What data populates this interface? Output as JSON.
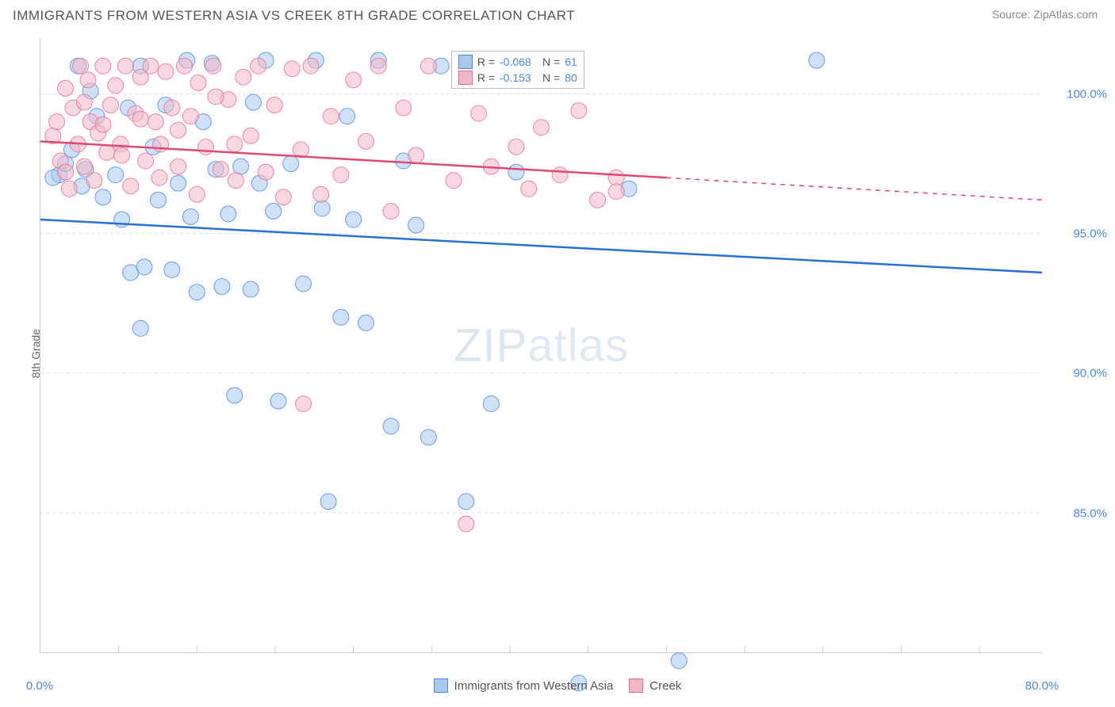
{
  "title": "IMMIGRANTS FROM WESTERN ASIA VS CREEK 8TH GRADE CORRELATION CHART",
  "source": "Source: ZipAtlas.com",
  "watermark_bold": "ZIP",
  "watermark_thin": "atlas",
  "chart": {
    "type": "scatter",
    "xlim": [
      0,
      80
    ],
    "ylim": [
      80,
      102
    ],
    "x_ticks": [
      0,
      80
    ],
    "x_tick_labels": [
      "0.0%",
      "80.0%"
    ],
    "x_minor_ticks": [
      6.25,
      12.5,
      18.75,
      25,
      31.25,
      37.5,
      43.75,
      50,
      56.25,
      62.5,
      68.75,
      75
    ],
    "y_ticks": [
      85,
      90,
      95,
      100
    ],
    "y_tick_labels": [
      "85.0%",
      "90.0%",
      "95.0%",
      "100.0%"
    ],
    "grid_color": "#dddddd",
    "grid_dash": "4,4",
    "background_color": "#ffffff",
    "tick_label_color": "#4a86e8",
    "y_axis_label": "8th Grade",
    "axis_label_color": "#666666",
    "marker_radius": 10,
    "marker_opacity": 0.55,
    "series": [
      {
        "name": "Immigrants from Western Asia",
        "fill_color": "#a8c8ee",
        "stroke_color": "#4a86e8",
        "trend_color": "#2a70d8",
        "R": "-0.068",
        "N": "61",
        "trend_start": [
          0,
          95.5
        ],
        "trend_end": [
          80,
          93.6
        ],
        "dashed_start": null,
        "dashed_end": null,
        "points": [
          [
            1.5,
            97.1
          ],
          [
            2.0,
            97.5
          ],
          [
            1.0,
            97.0
          ],
          [
            2.5,
            98.0
          ],
          [
            3.0,
            101.0
          ],
          [
            3.3,
            96.7
          ],
          [
            3.6,
            97.3
          ],
          [
            4.0,
            100.1
          ],
          [
            4.5,
            99.2
          ],
          [
            5.0,
            96.3
          ],
          [
            6.0,
            97.1
          ],
          [
            6.5,
            95.5
          ],
          [
            7.0,
            99.5
          ],
          [
            7.2,
            93.6
          ],
          [
            8.0,
            101.0
          ],
          [
            8.3,
            93.8
          ],
          [
            9.0,
            98.1
          ],
          [
            9.4,
            96.2
          ],
          [
            10.0,
            99.6
          ],
          [
            10.5,
            93.7
          ],
          [
            11.0,
            96.8
          ],
          [
            11.7,
            101.2
          ],
          [
            12.0,
            95.6
          ],
          [
            12.5,
            92.9
          ],
          [
            13.0,
            99.0
          ],
          [
            13.7,
            101.1
          ],
          [
            14.0,
            97.3
          ],
          [
            14.5,
            93.1
          ],
          [
            15.0,
            95.7
          ],
          [
            15.5,
            89.2
          ],
          [
            16.0,
            97.4
          ],
          [
            16.8,
            93.0
          ],
          [
            17.0,
            99.7
          ],
          [
            17.5,
            96.8
          ],
          [
            18.0,
            101.2
          ],
          [
            18.6,
            95.8
          ],
          [
            19.0,
            89.0
          ],
          [
            20.0,
            97.5
          ],
          [
            21.0,
            93.2
          ],
          [
            22.0,
            101.2
          ],
          [
            22.5,
            95.9
          ],
          [
            23.0,
            85.4
          ],
          [
            24.0,
            92.0
          ],
          [
            24.5,
            99.2
          ],
          [
            25.0,
            95.5
          ],
          [
            26.0,
            91.8
          ],
          [
            27.0,
            101.2
          ],
          [
            28.0,
            88.1
          ],
          [
            29.0,
            97.6
          ],
          [
            30.0,
            95.3
          ],
          [
            31.0,
            87.7
          ],
          [
            32.0,
            101.0
          ],
          [
            34.0,
            85.4
          ],
          [
            36.0,
            88.9
          ],
          [
            38.0,
            97.2
          ],
          [
            40.0,
            101.0
          ],
          [
            43.0,
            78.9
          ],
          [
            47.0,
            96.6
          ],
          [
            51.0,
            79.7
          ],
          [
            62.0,
            101.2
          ],
          [
            8.0,
            91.6
          ]
        ]
      },
      {
        "name": "Creek",
        "fill_color": "#f3b8c6",
        "stroke_color": "#e86d8a",
        "trend_color": "#e04a72",
        "R": "-0.153",
        "N": "80",
        "trend_start": [
          0,
          98.3
        ],
        "trend_end": [
          50,
          97.0
        ],
        "dashed_start": [
          50,
          97.0
        ],
        "dashed_end": [
          80,
          96.2
        ],
        "points": [
          [
            1.0,
            98.5
          ],
          [
            1.3,
            99.0
          ],
          [
            1.6,
            97.6
          ],
          [
            2.0,
            100.2
          ],
          [
            2.3,
            96.6
          ],
          [
            2.6,
            99.5
          ],
          [
            3.0,
            98.2
          ],
          [
            3.2,
            101.0
          ],
          [
            3.5,
            97.4
          ],
          [
            3.8,
            100.5
          ],
          [
            4.0,
            99.0
          ],
          [
            4.3,
            96.9
          ],
          [
            4.6,
            98.6
          ],
          [
            5.0,
            101.0
          ],
          [
            5.3,
            97.9
          ],
          [
            5.6,
            99.6
          ],
          [
            6.0,
            100.3
          ],
          [
            6.4,
            98.2
          ],
          [
            6.8,
            101.0
          ],
          [
            7.2,
            96.7
          ],
          [
            7.6,
            99.3
          ],
          [
            8.0,
            100.6
          ],
          [
            8.4,
            97.6
          ],
          [
            8.8,
            101.0
          ],
          [
            9.2,
            99.0
          ],
          [
            9.6,
            98.2
          ],
          [
            10.0,
            100.8
          ],
          [
            10.5,
            99.5
          ],
          [
            11.0,
            97.4
          ],
          [
            11.5,
            101.0
          ],
          [
            12.0,
            99.2
          ],
          [
            12.6,
            100.4
          ],
          [
            13.2,
            98.1
          ],
          [
            13.8,
            101.0
          ],
          [
            14.4,
            97.3
          ],
          [
            15.0,
            99.8
          ],
          [
            15.6,
            96.9
          ],
          [
            16.2,
            100.6
          ],
          [
            16.8,
            98.5
          ],
          [
            17.4,
            101.0
          ],
          [
            18.0,
            97.2
          ],
          [
            18.7,
            99.6
          ],
          [
            19.4,
            96.3
          ],
          [
            20.1,
            100.9
          ],
          [
            20.8,
            98.0
          ],
          [
            21.6,
            101.0
          ],
          [
            22.4,
            96.4
          ],
          [
            23.2,
            99.2
          ],
          [
            24.0,
            97.1
          ],
          [
            25.0,
            100.5
          ],
          [
            26.0,
            98.3
          ],
          [
            27.0,
            101.0
          ],
          [
            28.0,
            95.8
          ],
          [
            29.0,
            99.5
          ],
          [
            30.0,
            97.8
          ],
          [
            31.0,
            101.0
          ],
          [
            21.0,
            88.9
          ],
          [
            33.0,
            96.9
          ],
          [
            34.0,
            84.6
          ],
          [
            35.0,
            99.3
          ],
          [
            36.0,
            97.4
          ],
          [
            37.0,
            101.0
          ],
          [
            38.0,
            98.1
          ],
          [
            39.0,
            96.6
          ],
          [
            40.0,
            98.8
          ],
          [
            41.5,
            97.1
          ],
          [
            43.0,
            99.4
          ],
          [
            44.5,
            96.2
          ],
          [
            46.0,
            97.0
          ],
          [
            46.0,
            96.5
          ],
          [
            2.0,
            97.2
          ],
          [
            3.5,
            99.7
          ],
          [
            5.0,
            98.9
          ],
          [
            6.5,
            97.8
          ],
          [
            8.0,
            99.1
          ],
          [
            9.5,
            97.0
          ],
          [
            11.0,
            98.7
          ],
          [
            12.5,
            96.4
          ],
          [
            14.0,
            99.9
          ],
          [
            15.5,
            98.2
          ]
        ]
      }
    ]
  },
  "corr_legend": {
    "left_pct": 41,
    "top_pct": 2,
    "rows": [
      {
        "swatch_fill": "#a8c8ee",
        "swatch_stroke": "#4a86e8",
        "R_label": "R =",
        "R_val": "-0.068",
        "N_label": "N =",
        "N_val": "61"
      },
      {
        "swatch_fill": "#f3b8c6",
        "swatch_stroke": "#e86d8a",
        "R_label": "R =",
        "R_val": "-0.153",
        "N_label": "N =",
        "N_val": "80"
      }
    ]
  },
  "bottom_legend": [
    {
      "swatch_fill": "#a8c8ee",
      "swatch_stroke": "#4a86e8",
      "label": "Immigrants from Western Asia"
    },
    {
      "swatch_fill": "#f3b8c6",
      "swatch_stroke": "#e86d8a",
      "label": "Creek"
    }
  ]
}
